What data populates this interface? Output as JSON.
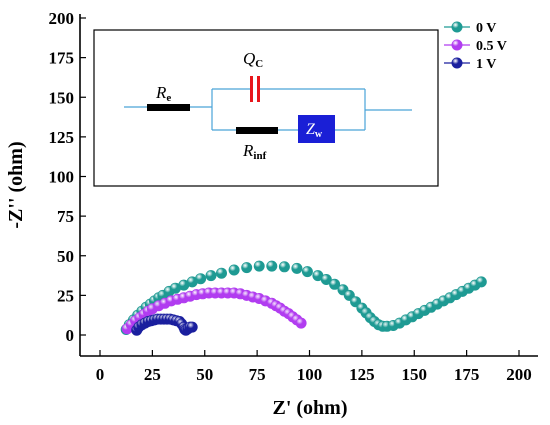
{
  "chart_data": {
    "type": "scatter",
    "xlabel": "Z' (ohm)",
    "ylabel": "-Z'' (ohm)",
    "xlim": [
      -10,
      200
    ],
    "ylim": [
      -10,
      200
    ],
    "xticks": [
      0,
      25,
      50,
      75,
      100,
      125,
      150,
      175,
      200
    ],
    "yticks": [
      0,
      25,
      50,
      75,
      100,
      125,
      150,
      175,
      200
    ],
    "grid": false,
    "legend_position": "top-right",
    "series": [
      {
        "name": "0 V",
        "color": "#1e9a93",
        "x": [
          12.5,
          14,
          16,
          18,
          20,
          22,
          24,
          26,
          28,
          30,
          33,
          36,
          40,
          44,
          48,
          53,
          58,
          64,
          70,
          76,
          82,
          88,
          94,
          99,
          104,
          108,
          112,
          116,
          119,
          122,
          125,
          127,
          129,
          131,
          133,
          135,
          137,
          140,
          143,
          146,
          149,
          152,
          155,
          158,
          161,
          164,
          167,
          170,
          173,
          176,
          179,
          182
        ],
        "y": [
          3.5,
          6.5,
          9.5,
          12.5,
          15,
          17.5,
          19.5,
          21.5,
          23.5,
          25,
          27.5,
          29.5,
          31.5,
          33.5,
          35.5,
          37.5,
          39,
          41,
          42.5,
          43.5,
          43.5,
          43,
          42,
          40,
          37.5,
          35,
          32,
          28.5,
          25,
          21,
          17,
          14,
          11,
          8.5,
          6.5,
          5.5,
          5.5,
          6,
          7.5,
          9.5,
          11.5,
          13.5,
          15.5,
          17.5,
          19.5,
          21.5,
          23.5,
          25.5,
          27.5,
          29.5,
          31.5,
          33.5
        ]
      },
      {
        "name": "0.5 V",
        "color": "#b13cf0",
        "x": [
          13,
          15,
          17,
          19,
          21,
          23,
          25,
          28,
          31,
          34,
          37,
          40,
          43,
          46,
          49,
          52,
          55,
          58,
          61,
          64,
          67,
          70,
          73,
          76,
          79,
          82,
          84,
          86,
          88,
          90,
          92,
          94,
          96
        ],
        "y": [
          4,
          6.5,
          9,
          11,
          13,
          15,
          16.5,
          18.5,
          20,
          21.5,
          22.5,
          23.5,
          24.5,
          25.5,
          26,
          26.5,
          26.5,
          26.5,
          26.5,
          26.5,
          26,
          25,
          24,
          23,
          21.5,
          20,
          18.5,
          17,
          15,
          13.5,
          11.5,
          9.5,
          7.5
        ]
      },
      {
        "name": "1 V",
        "color": "#1a1f9e",
        "x": [
          17.5,
          18.5,
          20,
          21.5,
          23,
          24.5,
          26,
          27.5,
          29,
          30.5,
          32,
          33.5,
          35,
          36.5,
          38,
          39,
          40,
          40.5,
          41,
          42,
          43,
          44
        ],
        "y": [
          3,
          5,
          6.5,
          7.5,
          8.5,
          9,
          9.5,
          10,
          10,
          10,
          10,
          10,
          9.5,
          9,
          8.5,
          7,
          5,
          3.5,
          3,
          4,
          5,
          5
        ]
      }
    ]
  },
  "inset": {
    "r_e": "R",
    "r_e_sub": "e",
    "q_c": "Q",
    "q_c_sub": "C",
    "r_inf": "R",
    "r_inf_sub": "inf",
    "z_w": "Z",
    "z_w_sub": "w",
    "resistor_color": "#000000",
    "capacitor_color": "#e8161b",
    "warburg_color": "#1a1fd6"
  }
}
